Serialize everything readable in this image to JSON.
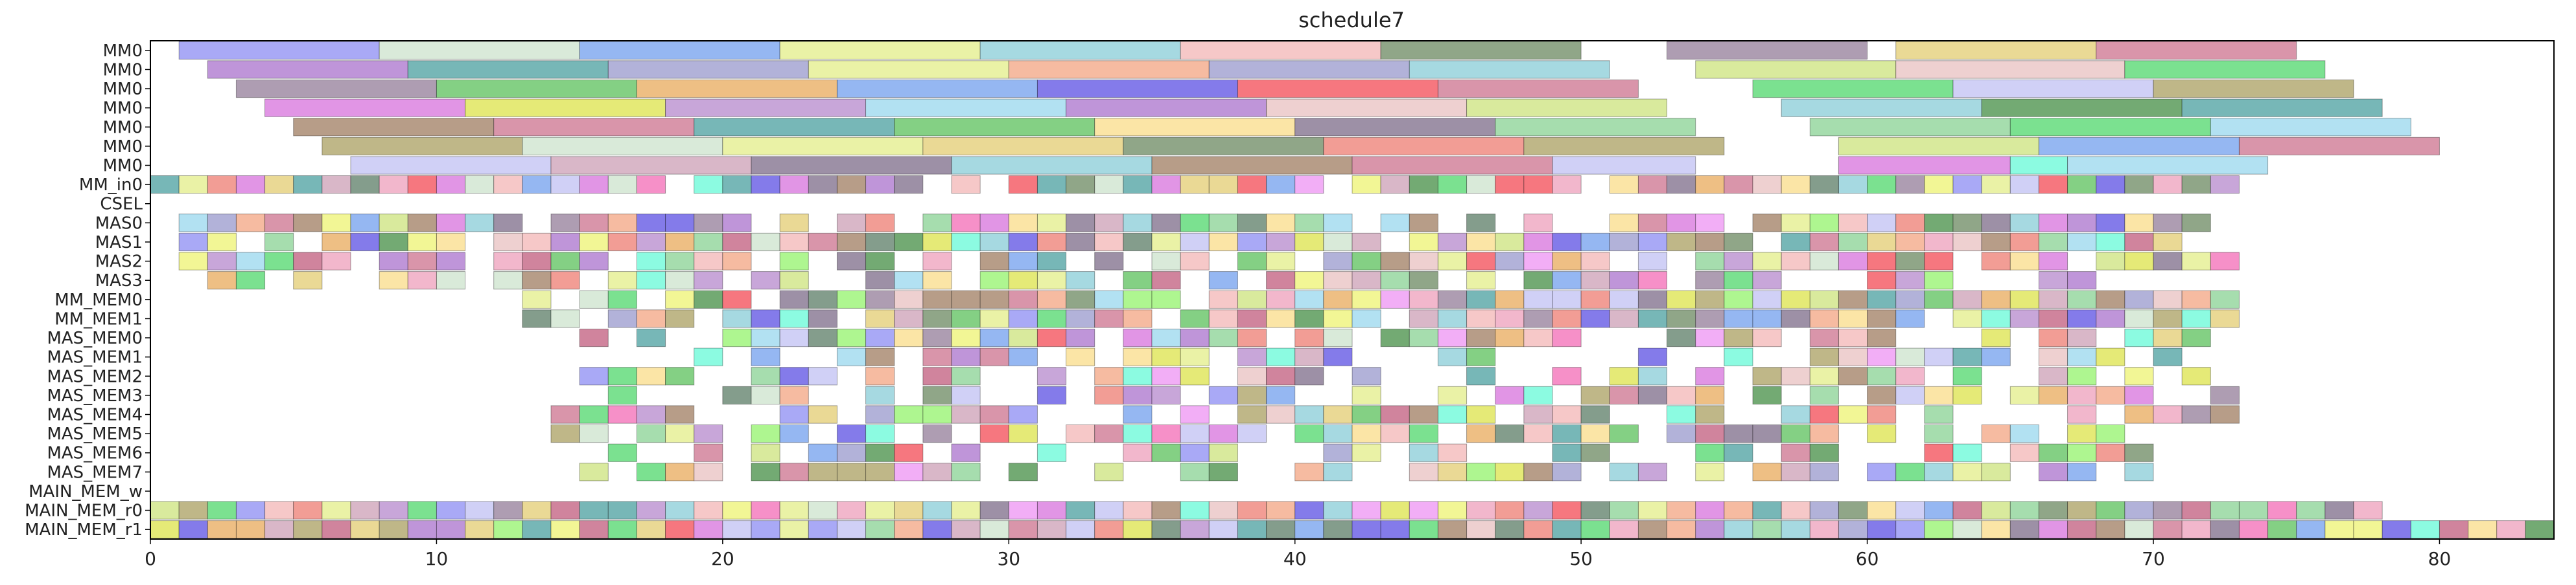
{
  "chart_data": {
    "type": "gantt",
    "title": "schedule7",
    "xlabel": "",
    "ylabel": "",
    "xlim": [
      0,
      84
    ],
    "x_ticks": [
      0,
      10,
      20,
      30,
      40,
      50,
      60,
      70,
      80
    ],
    "grid": false,
    "rows": [
      "MM0",
      "MM0",
      "MM0",
      "MM0",
      "MM0",
      "MM0",
      "MM0",
      "MM_in0",
      "CSEL",
      "MAS0",
      "MAS1",
      "MAS2",
      "MAS3",
      "MM_MEM0",
      "MM_MEM1",
      "MAS_MEM0",
      "MAS_MEM1",
      "MAS_MEM2",
      "MAS_MEM3",
      "MAS_MEM4",
      "MAS_MEM5",
      "MAS_MEM6",
      "MAS_MEM7",
      "MAIN_MEM_w",
      "MAIN_MEM_r0",
      "MAIN_MEM_r1"
    ],
    "palette": [
      "#9a9af5",
      "#d2e6d2",
      "#82aaf0",
      "#e6f096",
      "#96d2dc",
      "#f5bebe",
      "#7d9673",
      "#a08ca5",
      "#e6d282",
      "#d2829b",
      "#b482d2",
      "#5faaaa",
      "#a5a5d2",
      "#f5af91",
      "#d2aabe",
      "#f0f582",
      "#f55f69",
      "#6ec86e",
      "#d2e68c",
      "#8c7d96",
      "#f0aac3",
      "#be96d2",
      "#96d7a0",
      "#aa8c73",
      "#b4aa73",
      "#fae196",
      "#6e8c78",
      "#ebc8c8",
      "#ebb46e",
      "#64dc7d",
      "#dc82e1",
      "#6e64e6",
      "#f57dbe",
      "#e1e65f",
      "#a5dcf0",
      "#f08c82",
      "#78fadc",
      "#c86e8c",
      "#c8c8f5",
      "#a0f57d",
      "#5a9b5a",
      "#f0a0f5"
    ],
    "long_rows": [
      [
        [
          1,
          8,
          0
        ],
        [
          8,
          15,
          1
        ],
        [
          15,
          22,
          2
        ],
        [
          22,
          29,
          3
        ],
        [
          29,
          36,
          4
        ],
        [
          36,
          43,
          5
        ],
        [
          43,
          50,
          6
        ],
        [
          53,
          60,
          7
        ],
        [
          61,
          68,
          8
        ],
        [
          68,
          75,
          9
        ]
      ],
      [
        [
          2,
          9,
          10
        ],
        [
          9,
          16,
          11
        ],
        [
          16,
          23,
          12
        ],
        [
          23,
          30,
          3
        ],
        [
          30,
          37,
          13
        ],
        [
          37,
          44,
          12
        ],
        [
          44,
          51,
          4
        ],
        [
          54,
          61,
          18
        ],
        [
          61,
          69,
          27
        ],
        [
          69,
          76,
          29
        ]
      ],
      [
        [
          3,
          10,
          7
        ],
        [
          10,
          17,
          17
        ],
        [
          17,
          24,
          28
        ],
        [
          24,
          31,
          2
        ],
        [
          31,
          38,
          31
        ],
        [
          38,
          45,
          16
        ],
        [
          45,
          52,
          9
        ],
        [
          56,
          63,
          29
        ],
        [
          63,
          70,
          38
        ],
        [
          70,
          77,
          24
        ]
      ],
      [
        [
          4,
          11,
          30
        ],
        [
          11,
          18,
          33
        ],
        [
          18,
          25,
          21
        ],
        [
          25,
          32,
          34
        ],
        [
          32,
          39,
          10
        ],
        [
          39,
          46,
          27
        ],
        [
          46,
          53,
          18
        ],
        [
          57,
          64,
          4
        ],
        [
          64,
          71,
          40
        ],
        [
          71,
          78,
          11
        ]
      ],
      [
        [
          5,
          12,
          23
        ],
        [
          12,
          19,
          9
        ],
        [
          19,
          26,
          11
        ],
        [
          26,
          33,
          17
        ],
        [
          33,
          40,
          25
        ],
        [
          40,
          47,
          19
        ],
        [
          47,
          54,
          22
        ],
        [
          58,
          65,
          22
        ],
        [
          65,
          72,
          29
        ],
        [
          72,
          79,
          34
        ]
      ],
      [
        [
          6,
          13,
          24
        ],
        [
          13,
          20,
          1
        ],
        [
          20,
          27,
          3
        ],
        [
          27,
          34,
          8
        ],
        [
          34,
          41,
          6
        ],
        [
          41,
          48,
          35
        ],
        [
          48,
          55,
          24
        ],
        [
          59,
          66,
          18
        ],
        [
          66,
          73,
          2
        ],
        [
          73,
          80,
          9
        ]
      ],
      [
        [
          7,
          14,
          38
        ],
        [
          14,
          21,
          14
        ],
        [
          21,
          28,
          19
        ],
        [
          28,
          35,
          4
        ],
        [
          35,
          42,
          23
        ],
        [
          42,
          49,
          9
        ],
        [
          49,
          54,
          38
        ],
        [
          59,
          65,
          30
        ],
        [
          65,
          67,
          36
        ],
        [
          67,
          74,
          34
        ]
      ]
    ],
    "short_rows": [
      {
        "spans": [
          [
            0,
            14
          ],
          [
            14,
            50
          ],
          [
            51,
            73
          ]
        ],
        "seed": 11
      },
      {
        "spans": [],
        "seed": 13
      },
      {
        "spans": [
          [
            1,
            16
          ],
          [
            16,
            73
          ],
          [
            74,
            74
          ]
        ],
        "seed": 17,
        "p_gap": 0.12
      },
      {
        "spans": [
          [
            1,
            73
          ]
        ],
        "seed": 19,
        "p_gap": 0.14
      },
      {
        "spans": [
          [
            1,
            73
          ]
        ],
        "seed": 23,
        "p_gap": 0.18
      },
      {
        "spans": [
          [
            1,
            13
          ],
          [
            13,
            68
          ]
        ],
        "seed": 29,
        "p_gap": 0.35
      },
      {
        "spans": [
          [
            13,
            73
          ]
        ],
        "seed": 31,
        "p_gap": 0.1
      },
      {
        "spans": [
          [
            13,
            73
          ]
        ],
        "seed": 37,
        "p_gap": 0.15
      },
      {
        "spans": [
          [
            14,
            72
          ]
        ],
        "seed": 41,
        "p_gap": 0.3
      },
      {
        "spans": [
          [
            14,
            72
          ]
        ],
        "seed": 43,
        "p_gap": 0.32
      },
      {
        "spans": [
          [
            14,
            72
          ]
        ],
        "seed": 47,
        "p_gap": 0.35
      },
      {
        "spans": [
          [
            13,
            73
          ]
        ],
        "seed": 53,
        "p_gap": 0.3
      },
      {
        "spans": [
          [
            13,
            73
          ]
        ],
        "seed": 59,
        "p_gap": 0.28
      },
      {
        "spans": [
          [
            13,
            70
          ]
        ],
        "seed": 61,
        "p_gap": 0.3
      },
      {
        "spans": [
          [
            15,
            70
          ]
        ],
        "seed": 67,
        "p_gap": 0.32
      },
      {
        "spans": [
          [
            14,
            72
          ]
        ],
        "seed": 71,
        "p_gap": 0.3
      },
      {
        "spans": [],
        "seed": 73
      },
      {
        "spans": [
          [
            0,
            78
          ]
        ],
        "seed": 79,
        "p_gap": 0.0
      },
      {
        "spans": [
          [
            0,
            84
          ]
        ],
        "seed": 83,
        "p_gap": 0.0
      }
    ]
  }
}
